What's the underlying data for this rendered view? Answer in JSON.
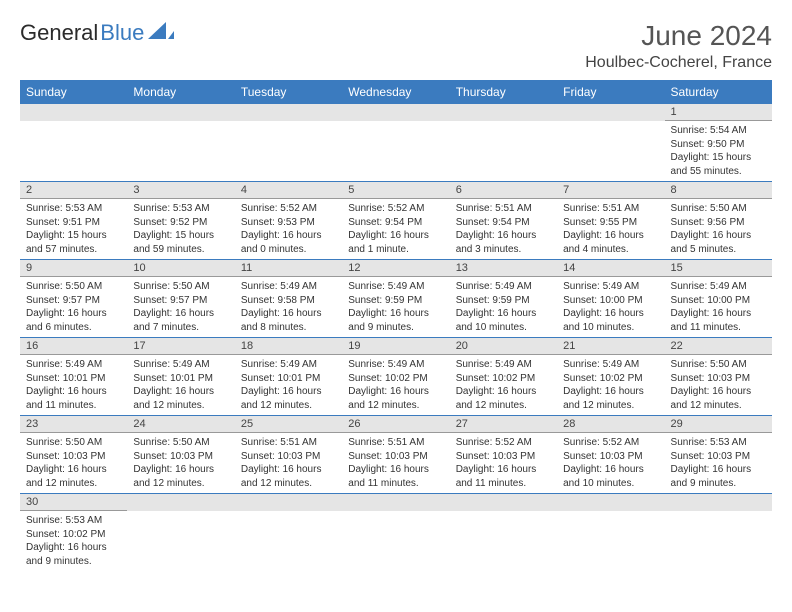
{
  "brand": {
    "part1": "General",
    "part2": "Blue"
  },
  "title": "June 2024",
  "location": "Houlbec-Cocherel, France",
  "colors": {
    "header_bg": "#3b7bbf",
    "header_text": "#ffffff",
    "daynum_bg": "#e5e5e5",
    "row_border": "#3b7bbf",
    "body_text": "#333333",
    "page_bg": "#ffffff"
  },
  "daynames": [
    "Sunday",
    "Monday",
    "Tuesday",
    "Wednesday",
    "Thursday",
    "Friday",
    "Saturday"
  ],
  "weeks": [
    [
      null,
      null,
      null,
      null,
      null,
      null,
      {
        "n": 1,
        "sunrise": "5:54 AM",
        "sunset": "9:50 PM",
        "daylight": "15 hours and 55 minutes."
      }
    ],
    [
      {
        "n": 2,
        "sunrise": "5:53 AM",
        "sunset": "9:51 PM",
        "daylight": "15 hours and 57 minutes."
      },
      {
        "n": 3,
        "sunrise": "5:53 AM",
        "sunset": "9:52 PM",
        "daylight": "15 hours and 59 minutes."
      },
      {
        "n": 4,
        "sunrise": "5:52 AM",
        "sunset": "9:53 PM",
        "daylight": "16 hours and 0 minutes."
      },
      {
        "n": 5,
        "sunrise": "5:52 AM",
        "sunset": "9:54 PM",
        "daylight": "16 hours and 1 minute."
      },
      {
        "n": 6,
        "sunrise": "5:51 AM",
        "sunset": "9:54 PM",
        "daylight": "16 hours and 3 minutes."
      },
      {
        "n": 7,
        "sunrise": "5:51 AM",
        "sunset": "9:55 PM",
        "daylight": "16 hours and 4 minutes."
      },
      {
        "n": 8,
        "sunrise": "5:50 AM",
        "sunset": "9:56 PM",
        "daylight": "16 hours and 5 minutes."
      }
    ],
    [
      {
        "n": 9,
        "sunrise": "5:50 AM",
        "sunset": "9:57 PM",
        "daylight": "16 hours and 6 minutes."
      },
      {
        "n": 10,
        "sunrise": "5:50 AM",
        "sunset": "9:57 PM",
        "daylight": "16 hours and 7 minutes."
      },
      {
        "n": 11,
        "sunrise": "5:49 AM",
        "sunset": "9:58 PM",
        "daylight": "16 hours and 8 minutes."
      },
      {
        "n": 12,
        "sunrise": "5:49 AM",
        "sunset": "9:59 PM",
        "daylight": "16 hours and 9 minutes."
      },
      {
        "n": 13,
        "sunrise": "5:49 AM",
        "sunset": "9:59 PM",
        "daylight": "16 hours and 10 minutes."
      },
      {
        "n": 14,
        "sunrise": "5:49 AM",
        "sunset": "10:00 PM",
        "daylight": "16 hours and 10 minutes."
      },
      {
        "n": 15,
        "sunrise": "5:49 AM",
        "sunset": "10:00 PM",
        "daylight": "16 hours and 11 minutes."
      }
    ],
    [
      {
        "n": 16,
        "sunrise": "5:49 AM",
        "sunset": "10:01 PM",
        "daylight": "16 hours and 11 minutes."
      },
      {
        "n": 17,
        "sunrise": "5:49 AM",
        "sunset": "10:01 PM",
        "daylight": "16 hours and 12 minutes."
      },
      {
        "n": 18,
        "sunrise": "5:49 AM",
        "sunset": "10:01 PM",
        "daylight": "16 hours and 12 minutes."
      },
      {
        "n": 19,
        "sunrise": "5:49 AM",
        "sunset": "10:02 PM",
        "daylight": "16 hours and 12 minutes."
      },
      {
        "n": 20,
        "sunrise": "5:49 AM",
        "sunset": "10:02 PM",
        "daylight": "16 hours and 12 minutes."
      },
      {
        "n": 21,
        "sunrise": "5:49 AM",
        "sunset": "10:02 PM",
        "daylight": "16 hours and 12 minutes."
      },
      {
        "n": 22,
        "sunrise": "5:50 AM",
        "sunset": "10:03 PM",
        "daylight": "16 hours and 12 minutes."
      }
    ],
    [
      {
        "n": 23,
        "sunrise": "5:50 AM",
        "sunset": "10:03 PM",
        "daylight": "16 hours and 12 minutes."
      },
      {
        "n": 24,
        "sunrise": "5:50 AM",
        "sunset": "10:03 PM",
        "daylight": "16 hours and 12 minutes."
      },
      {
        "n": 25,
        "sunrise": "5:51 AM",
        "sunset": "10:03 PM",
        "daylight": "16 hours and 12 minutes."
      },
      {
        "n": 26,
        "sunrise": "5:51 AM",
        "sunset": "10:03 PM",
        "daylight": "16 hours and 11 minutes."
      },
      {
        "n": 27,
        "sunrise": "5:52 AM",
        "sunset": "10:03 PM",
        "daylight": "16 hours and 11 minutes."
      },
      {
        "n": 28,
        "sunrise": "5:52 AM",
        "sunset": "10:03 PM",
        "daylight": "16 hours and 10 minutes."
      },
      {
        "n": 29,
        "sunrise": "5:53 AM",
        "sunset": "10:03 PM",
        "daylight": "16 hours and 9 minutes."
      }
    ],
    [
      {
        "n": 30,
        "sunrise": "5:53 AM",
        "sunset": "10:02 PM",
        "daylight": "16 hours and 9 minutes."
      },
      null,
      null,
      null,
      null,
      null,
      null
    ]
  ],
  "labels": {
    "sunrise": "Sunrise:",
    "sunset": "Sunset:",
    "daylight": "Daylight:"
  }
}
